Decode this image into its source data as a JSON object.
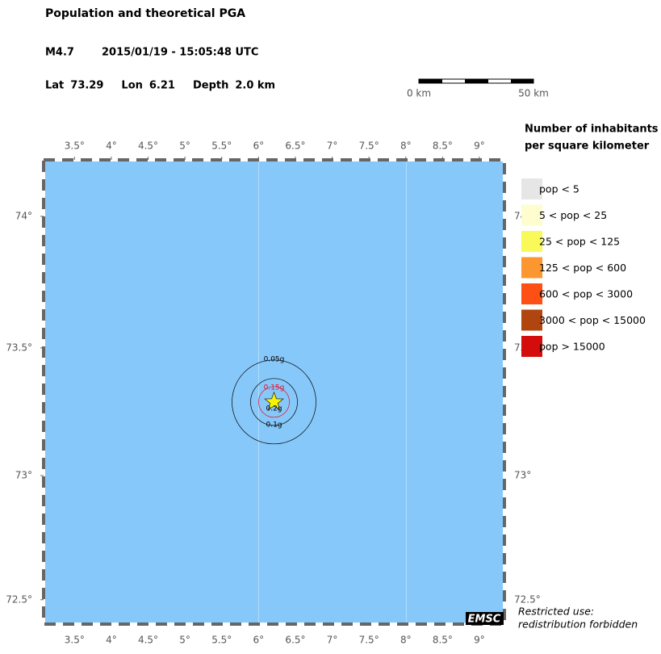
{
  "header": {
    "title": "Population and theoretical PGA",
    "magnitude": "M4.7",
    "datetime": "2015/01/19 - 15:05:48 UTC",
    "location": [
      {
        "label": "Lat",
        "value": 73.29
      },
      {
        "label": "Lon",
        "value": 6.21
      },
      {
        "label": "Depth",
        "value": "2.0 km"
      }
    ]
  },
  "scale_bar": {
    "labels": [
      "0 km",
      "50 km"
    ]
  },
  "map": {
    "sea_color": "#87c8fa",
    "xlim": [
      3.08,
      9.34
    ],
    "ylim": [
      72.4,
      74.21
    ],
    "xticks": [
      {
        "value": 3.5,
        "label": "3.5°"
      },
      {
        "value": 4,
        "label": "4°"
      },
      {
        "value": 4.5,
        "label": "4.5°"
      },
      {
        "value": 5,
        "label": "5°"
      },
      {
        "value": 5.5,
        "label": "5.5°"
      },
      {
        "value": 6,
        "label": "6°"
      },
      {
        "value": 6.5,
        "label": "6.5°"
      },
      {
        "value": 7,
        "label": "7°"
      },
      {
        "value": 7.5,
        "label": "7.5°"
      },
      {
        "value": 8,
        "label": "8°"
      },
      {
        "value": 8.5,
        "label": "8.5°"
      },
      {
        "value": 9,
        "label": "9°"
      }
    ],
    "yticks": [
      {
        "value": 72.5,
        "label": "72.5°"
      },
      {
        "value": 73,
        "label": "73°"
      },
      {
        "value": 73.5,
        "label": "73.5°"
      },
      {
        "value": 74,
        "label": "74°"
      }
    ],
    "contours": [
      {
        "label": "0.05g",
        "color": "#000000"
      },
      {
        "label": "0.1g",
        "color": "#000000"
      },
      {
        "label": "0.15g",
        "color": "#e0102a"
      },
      {
        "label": "0.2g",
        "color": "#000000"
      }
    ]
  },
  "legend": {
    "title": [
      "Number of inhabitants",
      "per square kilometer"
    ],
    "items": [
      {
        "label": "pop < 5",
        "color": "#e6e6e6"
      },
      {
        "label": "5 < pop < 25",
        "color": "#fefdd0"
      },
      {
        "label": "25 < pop < 125",
        "color": "#f9f95a"
      },
      {
        "label": "125 < pop < 600",
        "color": "#fb9630"
      },
      {
        "label": "600 < pop < 3000",
        "color": "#fc5015"
      },
      {
        "label": "3000 < pop < 15000",
        "color": "#b0450f"
      },
      {
        "label": "pop > 15000",
        "color": "#d40c0c"
      }
    ]
  },
  "logo": "EMSC",
  "notice": [
    "Restricted use:",
    "redistribution forbidden"
  ]
}
